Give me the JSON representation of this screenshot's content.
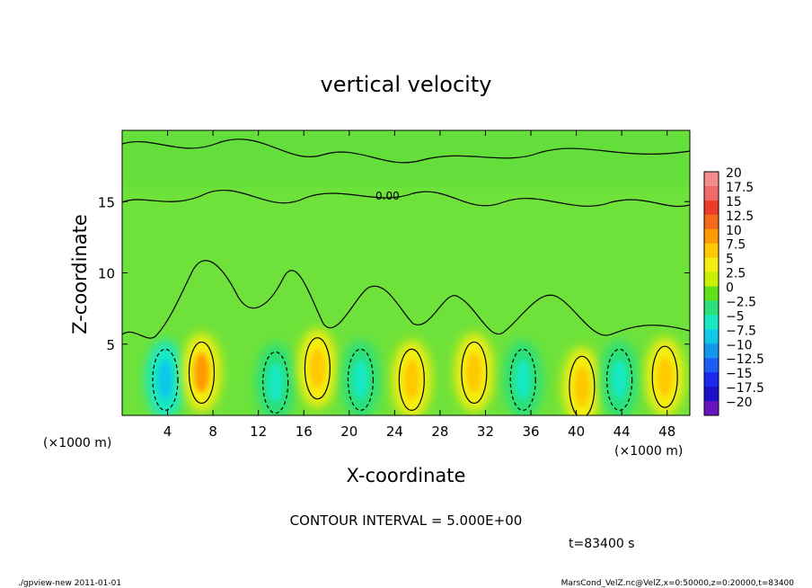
{
  "chart_data": {
    "type": "heatmap",
    "title": "vertical velocity",
    "xlabel": "X-coordinate",
    "ylabel": "Z-coordinate",
    "x_unit_label": "(×1000 m)",
    "y_unit_label": "(×1000 m)",
    "xlim": [
      0,
      50
    ],
    "ylim": [
      0,
      20
    ],
    "x_ticks": [
      4,
      8,
      12,
      16,
      20,
      24,
      28,
      32,
      36,
      40,
      44,
      48
    ],
    "y_ticks": [
      5,
      10,
      15
    ],
    "contour_interval_label": "CONTOUR INTERVAL = 5.000E+00",
    "contour_label": "0.00",
    "time_label": "t=83400 s",
    "colorbar": {
      "levels": [
        20,
        17.5,
        15,
        12.5,
        10,
        7.5,
        5,
        2.5,
        0,
        -2.5,
        -5,
        -7.5,
        -10,
        -12.5,
        -15,
        -17.5,
        -20
      ],
      "level_labels": [
        "20",
        "17.5",
        "15",
        "12.5",
        "10",
        "7.5",
        "5",
        "2.5",
        "0",
        "−2.5",
        "−5",
        "−7.5",
        "−10",
        "−12.5",
        "−15",
        "−17.5",
        "−20"
      ],
      "colors": [
        "#f48c8c",
        "#f06a6a",
        "#ee3c2c",
        "#f56a1a",
        "#ff9a00",
        "#ffc800",
        "#f5ee10",
        "#c8f000",
        "#5ee01a",
        "#2ce07a",
        "#18e8c4",
        "#10c8e8",
        "#1496ec",
        "#1c5ef4",
        "#1c28f0",
        "#1c10c8",
        "#6a14c0"
      ]
    },
    "features": [
      {
        "x": 3.8,
        "z": 2.5,
        "value": -7.5
      },
      {
        "x": 7.0,
        "z": 3.0,
        "value": 10
      },
      {
        "x": 13.5,
        "z": 2.3,
        "value": -5
      },
      {
        "x": 17.2,
        "z": 3.3,
        "value": 7.5
      },
      {
        "x": 21.0,
        "z": 2.5,
        "value": -5
      },
      {
        "x": 25.5,
        "z": 2.5,
        "value": 7.5
      },
      {
        "x": 31.0,
        "z": 3.0,
        "value": 7.5
      },
      {
        "x": 35.3,
        "z": 2.5,
        "value": -5
      },
      {
        "x": 40.5,
        "z": 2.0,
        "value": 7.5
      },
      {
        "x": 43.8,
        "z": 2.5,
        "value": -5
      },
      {
        "x": 47.8,
        "z": 2.7,
        "value": 7.5
      }
    ]
  },
  "footer": {
    "left": "./gpview-new   2011-01-01",
    "right": "MarsCond_VelZ.nc@VelZ,x=0:50000,z=0:20000,t=83400"
  }
}
